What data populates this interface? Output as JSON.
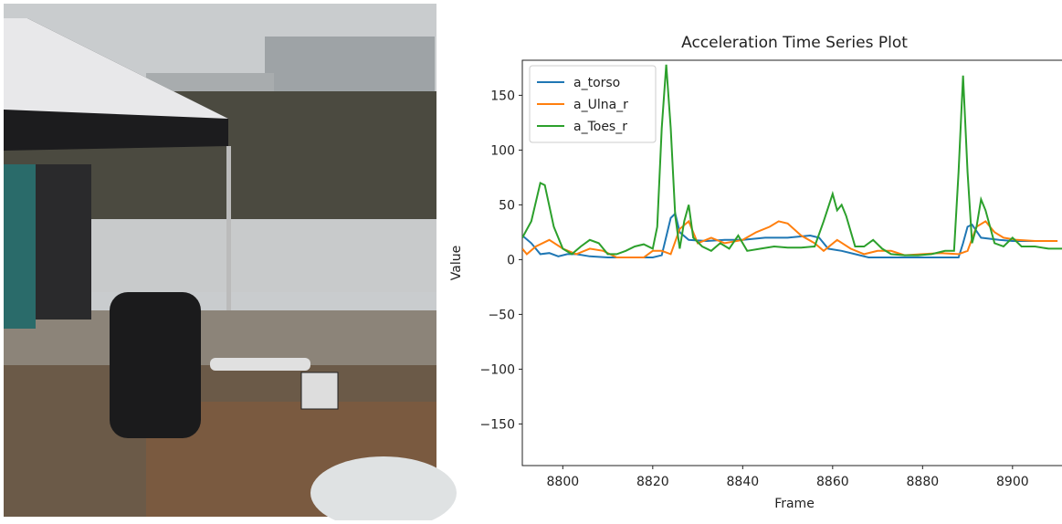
{
  "chart_data": {
    "type": "line",
    "title": "Acceleration Time Series Plot",
    "x_label": "Frame",
    "y_label": "Value",
    "xlim": [
      8791,
      8911
    ],
    "ylim": [
      -188,
      182
    ],
    "xticks": [
      8800,
      8820,
      8840,
      8860,
      8880,
      8900
    ],
    "yticks": [
      {
        "value": -150,
        "label": "−150"
      },
      {
        "value": -100,
        "label": "−100"
      },
      {
        "value": -50,
        "label": "−50"
      },
      0,
      50,
      100,
      150
    ],
    "grid": false,
    "legend": "upper-left",
    "series": [
      {
        "name": "a_torso",
        "color": "#1f77b4",
        "x": [
          8791,
          8793,
          8795,
          8797,
          8799,
          8801,
          8803,
          8806,
          8810,
          8815,
          8820,
          8822,
          8824,
          8825,
          8826,
          8828,
          8832,
          8836,
          8840,
          8845,
          8850,
          8855,
          8857,
          8859,
          8862,
          8865,
          8868,
          8872,
          8876,
          8880,
          8885,
          8888,
          8889,
          8890,
          8891,
          8893,
          8897,
          8900,
          8905,
          8910
        ],
        "values": [
          22,
          15,
          5,
          6,
          3,
          5,
          5,
          3,
          2,
          2,
          2,
          4,
          38,
          42,
          25,
          18,
          17,
          18,
          18,
          20,
          20,
          22,
          20,
          10,
          8,
          5,
          2,
          2,
          2,
          2,
          2,
          2,
          15,
          30,
          32,
          20,
          18,
          17,
          17,
          17
        ]
      },
      {
        "name": "a_Ulna_r",
        "color": "#ff7f0e",
        "x": [
          8791,
          8792,
          8794,
          8797,
          8800,
          8803,
          8806,
          8809,
          8812,
          8815,
          8818,
          8820,
          8822,
          8824,
          8826,
          8828,
          8830,
          8833,
          8836,
          8840,
          8843,
          8846,
          8848,
          8850,
          8853,
          8856,
          8858,
          8861,
          8864,
          8867,
          8870,
          8873,
          8876,
          8880,
          8884,
          8888,
          8890,
          8892,
          8894,
          8896,
          8898,
          8901,
          8905,
          8910
        ],
        "values": [
          10,
          5,
          12,
          18,
          10,
          5,
          10,
          8,
          2,
          2,
          2,
          8,
          8,
          5,
          28,
          35,
          15,
          20,
          15,
          18,
          25,
          30,
          35,
          33,
          22,
          15,
          8,
          18,
          10,
          5,
          8,
          8,
          4,
          5,
          6,
          5,
          8,
          30,
          35,
          25,
          20,
          18,
          17,
          17
        ]
      },
      {
        "name": "a_Toes_r",
        "color": "#2ca02c",
        "x": [
          8791,
          8793,
          8795,
          8796,
          8798,
          8800,
          8802,
          8804,
          8806,
          8808,
          8810,
          8812,
          8814,
          8816,
          8818,
          8820,
          8821,
          8822,
          8823,
          8824,
          8825,
          8826,
          8827,
          8828,
          8829,
          8831,
          8833,
          8835,
          8837,
          8839,
          8841,
          8844,
          8847,
          8850,
          8853,
          8856,
          8858,
          8860,
          8861,
          8862,
          8863,
          8865,
          8867,
          8869,
          8871,
          8873,
          8876,
          8879,
          8882,
          8885,
          8887,
          8888,
          8889,
          8890,
          8891,
          8892,
          8893,
          8894,
          8896,
          8898,
          8900,
          8902,
          8905,
          8908,
          8911
        ],
        "values": [
          20,
          35,
          70,
          68,
          30,
          10,
          5,
          12,
          18,
          15,
          5,
          5,
          8,
          12,
          14,
          10,
          30,
          120,
          178,
          120,
          40,
          10,
          35,
          50,
          20,
          12,
          8,
          15,
          10,
          22,
          8,
          10,
          12,
          11,
          11,
          12,
          35,
          60,
          45,
          50,
          40,
          12,
          12,
          18,
          10,
          5,
          4,
          4,
          5,
          8,
          8,
          80,
          168,
          80,
          15,
          30,
          55,
          45,
          15,
          12,
          20,
          12,
          12,
          10,
          10
        ]
      }
    ]
  }
}
